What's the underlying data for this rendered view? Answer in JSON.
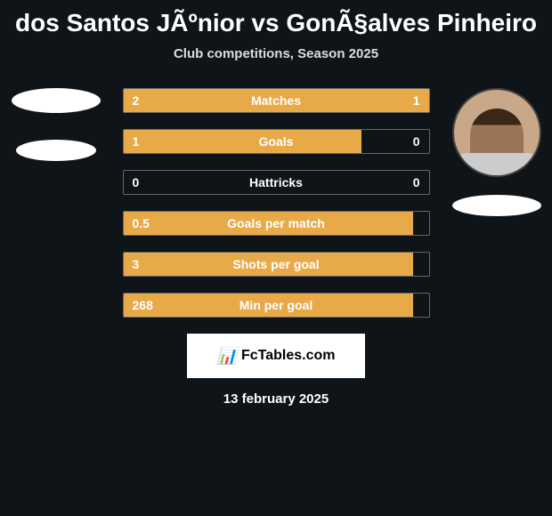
{
  "title": "dos Santos JÃºnior vs GonÃ§alves Pinheiro",
  "subtitle": "Club competitions, Season 2025",
  "stats": [
    {
      "label": "Matches",
      "left_value": "2",
      "right_value": "1",
      "left_pct": 66.7,
      "right_pct": 33.3
    },
    {
      "label": "Goals",
      "left_value": "1",
      "right_value": "0",
      "left_pct": 78,
      "right_pct": 0
    },
    {
      "label": "Hattricks",
      "left_value": "0",
      "right_value": "0",
      "left_pct": 0,
      "right_pct": 0
    },
    {
      "label": "Goals per match",
      "left_value": "0.5",
      "right_value": "",
      "left_pct": 95,
      "right_pct": 0
    },
    {
      "label": "Shots per goal",
      "left_value": "3",
      "right_value": "",
      "left_pct": 95,
      "right_pct": 0
    },
    {
      "label": "Min per goal",
      "left_value": "268",
      "right_value": "",
      "left_pct": 95,
      "right_pct": 0
    }
  ],
  "colors": {
    "background": "#0f1419",
    "bar_fill": "#e8a948",
    "bar_border": "#666666",
    "text": "#ffffff"
  },
  "footer": {
    "brand": "FcTables.com",
    "date": "13 february 2025"
  },
  "players": {
    "left": {
      "has_avatar": false
    },
    "right": {
      "has_avatar": true
    }
  }
}
